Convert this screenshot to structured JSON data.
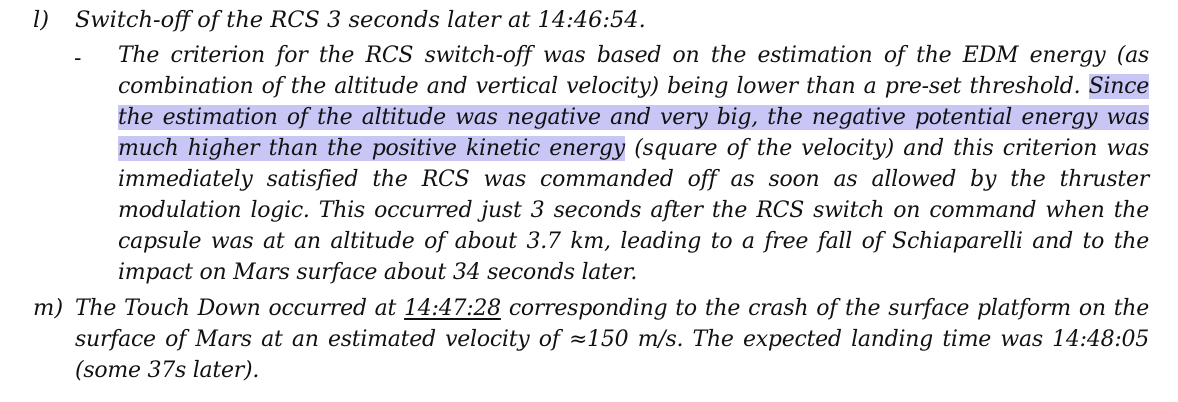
{
  "items": {
    "l": {
      "marker": "l)",
      "text": "Switch-off of the RCS 3 seconds later at 14:46:54."
    },
    "sub": {
      "bullet": "-",
      "lines": [
        {
          "pre": "The criterion for the RCS switch-off was based on the estimation of the EDM energy (as",
          "hl": "",
          "post": ""
        },
        {
          "pre": "combination of the altitude and vertical velocity) being lower than a pre-set threshold. ",
          "hl": "Since",
          "post": ""
        },
        {
          "pre": "",
          "hl": "the estimation of the altitude was negative and very big, the negative potential energy was",
          "post": ""
        },
        {
          "pre": "",
          "hl": "much higher than the positive kinetic energy",
          "post": " (square of the velocity) and this criterion was"
        },
        {
          "pre": "immediately satisfied the RCS was commanded off as soon as allowed by the thruster",
          "hl": "",
          "post": ""
        },
        {
          "pre": "modulation logic. This occurred just 3 seconds after the RCS switch on command when the",
          "hl": "",
          "post": ""
        },
        {
          "pre": "capsule was at an altitude of about 3.7 km, leading to a free fall of Schiaparelli and to the",
          "hl": "",
          "post": ""
        },
        {
          "pre": "impact on Mars surface about 34 seconds later.",
          "hl": "",
          "post": ""
        }
      ]
    },
    "m": {
      "marker": "m)",
      "line1_pre": "The Touch Down occurred at ",
      "line1_time": "14:47:28",
      "line1_post": " corresponding to the crash of the surface platform on the",
      "line2": "surface of Mars at an estimated velocity of ≈150 m/s. The expected landing time was 14:48:05",
      "line3": "(some 37s later)."
    }
  }
}
